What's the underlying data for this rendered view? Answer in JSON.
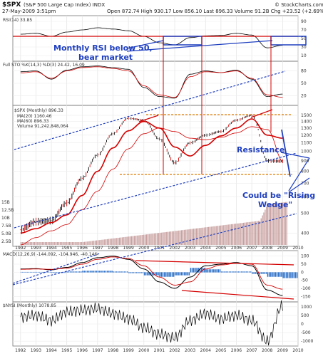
{
  "header": {
    "title": "$SPX",
    "subtitle": "(S&P 500 Large Cap Index)  INDX",
    "date": "27-May-2009 3:51pm",
    "quote": "Open 872.74  High 930.17  Low 856.10  Last 896.33  Volume 91.2B  Chg +23.52 (+2.69%)",
    "watermark": "© StockCharts.com"
  },
  "panels": {
    "rsi_label": "RSI(14) 33.85",
    "sto_label": "Full STO %K(14,3) %D(3) 24.42, 16.09",
    "price_label": "$SPX (Monthly) 896.33",
    "ma20_label": "MA(20) 1160.46",
    "ma60_label": "MA(60) 896.33",
    "volume_label": "Volume 91,242,848,064",
    "macd_label": "MACD(12,26,9) -144.092, -104.946, -40.146",
    "nysi_label": "$NYSI (Monthly) 1078.85"
  },
  "annotations": {
    "rsi_note_1": "Monthly RSI below 50,",
    "rsi_note_2": "bear market",
    "resistance": "Resistance",
    "wedge_1": "Could be \"Rising",
    "wedge_2": "Wedge\""
  },
  "colors": {
    "price": "#000000",
    "ma20": "#d40000",
    "ma60": "#d40000",
    "channel": "#1f3fbf",
    "volume": "#c89f9f",
    "macd_hist": "#2a6fc9",
    "orange": "#e07a00",
    "accent_blue": "#1f3fbf",
    "trend_red": "#d40000"
  },
  "chart_data": {
    "type": "line",
    "x": [
      1992,
      1993,
      1994,
      1995,
      1996,
      1997,
      1998,
      1999,
      2000,
      2001,
      2002,
      2003,
      2004,
      2005,
      2006,
      2007,
      2008,
      2009
    ],
    "xlim": [
      1991.5,
      2010
    ],
    "x_ticks": [
      "1992",
      "1993",
      "1994",
      "1995",
      "1996",
      "1997",
      "1998",
      "1999",
      "2000",
      "2001",
      "2002",
      "2003",
      "2004",
      "2005",
      "2006",
      "2007",
      "2008",
      "2009",
      "2010"
    ],
    "series": [
      {
        "name": "$SPX (Monthly)",
        "values": [
          415,
          455,
          460,
          560,
          740,
          960,
          1220,
          1450,
          1420,
          1150,
          880,
          1100,
          1200,
          1250,
          1420,
          1500,
          900,
          896
        ]
      },
      {
        "name": "MA(20)",
        "values": [
          400,
          420,
          450,
          490,
          610,
          800,
          1040,
          1260,
          1400,
          1300,
          1050,
          950,
          1070,
          1190,
          1300,
          1440,
          1200,
          1160
        ]
      },
      {
        "name": "MA(60)",
        "values": [
          350,
          380,
          410,
          440,
          520,
          640,
          820,
          1030,
          1220,
          1300,
          1250,
          1160,
          1140,
          1170,
          1230,
          1320,
          1280,
          896
        ]
      }
    ],
    "price_ticks": [
      1500,
      1400,
      1300,
      1200,
      1100,
      1000,
      900,
      800,
      700,
      600,
      500,
      400
    ],
    "rsi": {
      "values": [
        60,
        62,
        55,
        65,
        70,
        75,
        72,
        68,
        55,
        40,
        35,
        52,
        56,
        57,
        62,
        58,
        28,
        34
      ],
      "ticks": [
        90,
        70,
        50,
        30,
        10
      ],
      "ylim": [
        0,
        100
      ]
    },
    "sto": {
      "k_values": [
        78,
        80,
        60,
        82,
        90,
        92,
        88,
        84,
        40,
        18,
        14,
        72,
        80,
        76,
        82,
        60,
        18,
        24
      ],
      "d_values": [
        75,
        78,
        62,
        80,
        88,
        90,
        86,
        80,
        44,
        22,
        16,
        66,
        78,
        76,
        80,
        62,
        22,
        16
      ],
      "ticks": [
        80,
        50,
        20
      ],
      "ylim": [
        0,
        100
      ]
    },
    "volume_ticks": [
      "15B",
      "12.5B",
      "10B",
      "7.5B",
      "5.0B",
      "2.5B"
    ],
    "macd": {
      "values": [
        20,
        22,
        15,
        30,
        60,
        90,
        100,
        80,
        20,
        -60,
        -100,
        -30,
        40,
        50,
        60,
        40,
        -110,
        -144
      ],
      "signal": [
        18,
        20,
        18,
        25,
        50,
        80,
        95,
        85,
        40,
        -30,
        -80,
        -60,
        20,
        45,
        55,
        50,
        -80,
        -105
      ],
      "ticks": [
        100,
        50,
        0,
        -50,
        -100,
        -150
      ],
      "ylim": [
        -175,
        125
      ]
    },
    "nysi": {
      "values": [
        400,
        500,
        200,
        700,
        800,
        900,
        600,
        300,
        -200,
        -600,
        -800,
        200,
        600,
        300,
        500,
        200,
        -1000,
        1078
      ],
      "ticks": [
        1000,
        500,
        0,
        -500,
        -1000
      ],
      "ylim": [
        -1200,
        1200
      ]
    }
  }
}
